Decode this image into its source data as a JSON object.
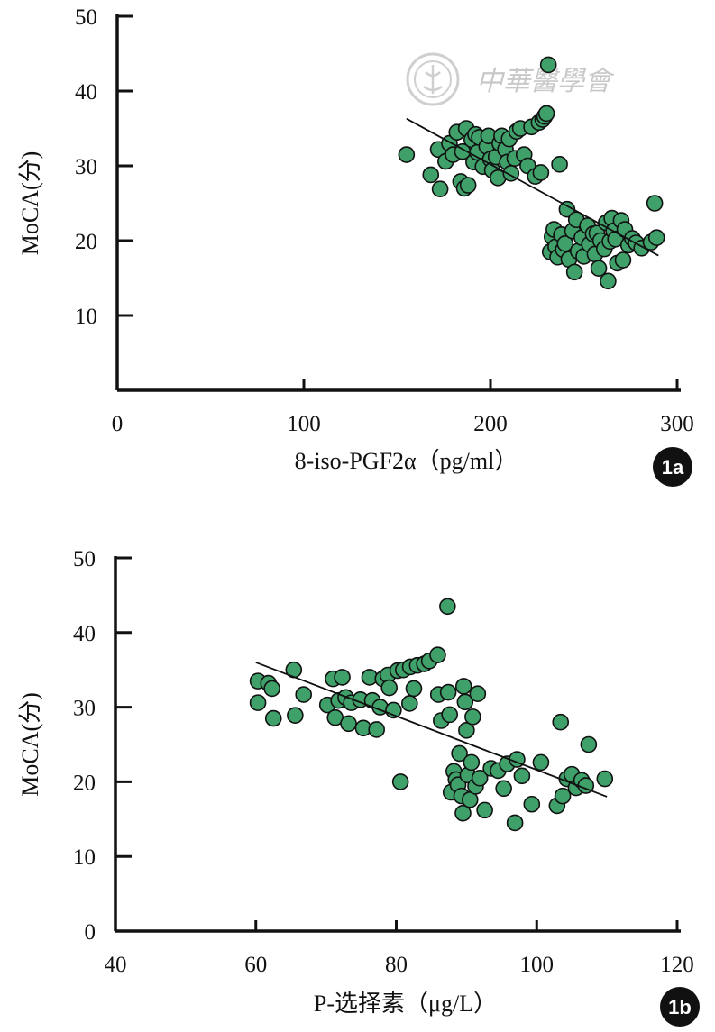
{
  "colors": {
    "marker_fill": "#3fa06a",
    "marker_stroke": "#111111",
    "axis": "#111111",
    "trend_line": "#111111",
    "badge_fill": "#111111",
    "watermark": "#c8c8c8"
  },
  "watermark": {
    "text": "中華醫學會",
    "icon": "medical-association-seal-icon"
  },
  "chart_data": [
    {
      "type": "scatter",
      "panel_label": "1a",
      "xlabel": "8-iso-PGF2α（pg/ml）",
      "ylabel": "MoCA(分)",
      "xlim": [
        0,
        300
      ],
      "ylim": [
        0,
        50
      ],
      "xticks": [
        0,
        100,
        200,
        300
      ],
      "yticks": [
        10,
        20,
        30,
        40,
        50
      ],
      "x_tick_labels": [
        "0",
        "100",
        "200",
        "300"
      ],
      "y_tick_labels": [
        "10",
        "20",
        "30",
        "40",
        "50"
      ],
      "grid": false,
      "trend_line": {
        "x": [
          155,
          290
        ],
        "y": [
          36.3,
          18.0
        ]
      },
      "points": [
        [
          155,
          31.5
        ],
        [
          168,
          28.8
        ],
        [
          172,
          32.2
        ],
        [
          173,
          26.9
        ],
        [
          176,
          30.6
        ],
        [
          178,
          33.0
        ],
        [
          180,
          31.5
        ],
        [
          182,
          34.5
        ],
        [
          184,
          27.9
        ],
        [
          185,
          31.9
        ],
        [
          186,
          27.0
        ],
        [
          187,
          35.0
        ],
        [
          188,
          27.4
        ],
        [
          190,
          33.5
        ],
        [
          191,
          30.5
        ],
        [
          192,
          34.2
        ],
        [
          193,
          31.8
        ],
        [
          194,
          33.8
        ],
        [
          196,
          29.9
        ],
        [
          198,
          32.6
        ],
        [
          199,
          34.0
        ],
        [
          200,
          30.9
        ],
        [
          201,
          29.4
        ],
        [
          203,
          31.2
        ],
        [
          204,
          28.4
        ],
        [
          205,
          33.0
        ],
        [
          206,
          34.0
        ],
        [
          208,
          32.2
        ],
        [
          209,
          30.5
        ],
        [
          210,
          33.6
        ],
        [
          211,
          29.0
        ],
        [
          213,
          31.0
        ],
        [
          214,
          34.6
        ],
        [
          216,
          35.0
        ],
        [
          218,
          31.5
        ],
        [
          220,
          30.0
        ],
        [
          222,
          35.2
        ],
        [
          224,
          28.6
        ],
        [
          226,
          35.8
        ],
        [
          227,
          29.1
        ],
        [
          228,
          36.2
        ],
        [
          229,
          36.6
        ],
        [
          230,
          37.0
        ],
        [
          231,
          43.5
        ],
        [
          232,
          18.5
        ],
        [
          233,
          20.5
        ],
        [
          234,
          21.5
        ],
        [
          235,
          19.2
        ],
        [
          236,
          17.8
        ],
        [
          237,
          30.2
        ],
        [
          238,
          20.8
        ],
        [
          239,
          18.8
        ],
        [
          240,
          19.6
        ],
        [
          241,
          24.2
        ],
        [
          242,
          17.5
        ],
        [
          244,
          21.3
        ],
        [
          245,
          15.8
        ],
        [
          246,
          22.8
        ],
        [
          247,
          18.6
        ],
        [
          249,
          20.4
        ],
        [
          250,
          17.9
        ],
        [
          252,
          22.0
        ],
        [
          253,
          19.5
        ],
        [
          255,
          20.9
        ],
        [
          256,
          18.2
        ],
        [
          257,
          21.0
        ],
        [
          258,
          16.3
        ],
        [
          259,
          20.0
        ],
        [
          261,
          18.9
        ],
        [
          262,
          22.4
        ],
        [
          263,
          14.6
        ],
        [
          264,
          19.9
        ],
        [
          265,
          23.0
        ],
        [
          266,
          21.3
        ],
        [
          267,
          20.2
        ],
        [
          268,
          17.0
        ],
        [
          270,
          22.7
        ],
        [
          271,
          17.4
        ],
        [
          272,
          21.5
        ],
        [
          274,
          19.4
        ],
        [
          276,
          20.3
        ],
        [
          278,
          19.7
        ],
        [
          281,
          19.0
        ],
        [
          286,
          19.8
        ],
        [
          288,
          25.0
        ],
        [
          289,
          20.4
        ]
      ]
    },
    {
      "type": "scatter",
      "panel_label": "1b",
      "xlabel": "P-选择素（μg/L）",
      "ylabel": "MoCA(分)",
      "xlim": [
        40,
        120
      ],
      "ylim": [
        0,
        50
      ],
      "xticks": [
        40,
        60,
        80,
        100,
        120
      ],
      "yticks": [
        0,
        10,
        20,
        30,
        40,
        50
      ],
      "x_tick_labels": [
        "40",
        "60",
        "80",
        "100",
        "120"
      ],
      "y_tick_labels": [
        "0",
        "10",
        "20",
        "30",
        "40",
        "50"
      ],
      "grid": false,
      "trend_line": {
        "x": [
          60,
          110
        ],
        "y": [
          36.0,
          18.0
        ]
      },
      "points": [
        [
          60.3,
          33.5
        ],
        [
          60.3,
          30.6
        ],
        [
          61.8,
          33.2
        ],
        [
          62.3,
          32.5
        ],
        [
          62.5,
          28.5
        ],
        [
          65.4,
          35.0
        ],
        [
          65.6,
          28.9
        ],
        [
          66.8,
          31.7
        ],
        [
          70.2,
          30.3
        ],
        [
          71.0,
          33.8
        ],
        [
          71.3,
          28.6
        ],
        [
          71.8,
          30.9
        ],
        [
          72.3,
          34.0
        ],
        [
          72.8,
          31.3
        ],
        [
          73.2,
          27.8
        ],
        [
          73.6,
          30.6
        ],
        [
          74.9,
          31.0
        ],
        [
          75.3,
          27.2
        ],
        [
          76.2,
          34.0
        ],
        [
          76.6,
          30.9
        ],
        [
          77.2,
          27.0
        ],
        [
          77.7,
          30.0
        ],
        [
          78.1,
          33.8
        ],
        [
          78.8,
          34.3
        ],
        [
          79.0,
          32.6
        ],
        [
          79.6,
          29.6
        ],
        [
          80.2,
          34.9
        ],
        [
          80.6,
          20.0
        ],
        [
          81.0,
          35.0
        ],
        [
          81.9,
          30.5
        ],
        [
          82.0,
          35.4
        ],
        [
          82.5,
          32.5
        ],
        [
          83.0,
          35.6
        ],
        [
          84.0,
          35.8
        ],
        [
          84.7,
          36.2
        ],
        [
          85.9,
          37.0
        ],
        [
          86.0,
          31.7
        ],
        [
          86.4,
          28.2
        ],
        [
          87.3,
          43.5
        ],
        [
          87.4,
          32.0
        ],
        [
          87.6,
          29.0
        ],
        [
          87.8,
          18.6
        ],
        [
          88.2,
          21.4
        ],
        [
          88.5,
          20.3
        ],
        [
          88.8,
          19.6
        ],
        [
          89.0,
          23.8
        ],
        [
          89.3,
          18.1
        ],
        [
          89.5,
          15.8
        ],
        [
          89.6,
          32.8
        ],
        [
          89.8,
          30.7
        ],
        [
          90.0,
          26.9
        ],
        [
          90.2,
          20.9
        ],
        [
          90.5,
          17.6
        ],
        [
          90.7,
          22.6
        ],
        [
          90.9,
          28.7
        ],
        [
          91.3,
          19.4
        ],
        [
          91.6,
          31.8
        ],
        [
          91.9,
          20.5
        ],
        [
          92.6,
          16.2
        ],
        [
          93.5,
          21.8
        ],
        [
          94.5,
          21.5
        ],
        [
          95.3,
          19.1
        ],
        [
          95.8,
          22.4
        ],
        [
          96.9,
          14.5
        ],
        [
          97.2,
          23.0
        ],
        [
          97.9,
          20.8
        ],
        [
          99.3,
          17.0
        ],
        [
          100.6,
          22.6
        ],
        [
          102.9,
          16.8
        ],
        [
          103.4,
          28.0
        ],
        [
          103.7,
          18.1
        ],
        [
          104.3,
          20.4
        ],
        [
          105.0,
          21.0
        ],
        [
          105.6,
          19.2
        ],
        [
          106.4,
          20.2
        ],
        [
          107.0,
          19.5
        ],
        [
          107.4,
          25.0
        ],
        [
          109.7,
          20.4
        ]
      ]
    }
  ]
}
